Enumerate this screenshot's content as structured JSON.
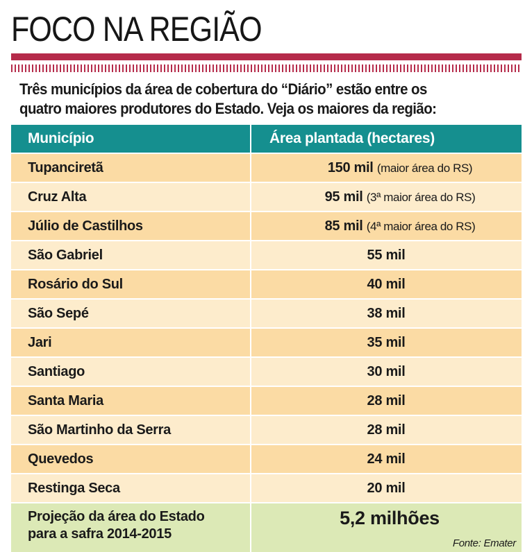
{
  "title": "FOCO NA REGIÃO",
  "intro": {
    "line1": "Três municípios da área de cobertura do “Diário” estão entre os",
    "line2": "quatro maiores produtores do Estado. Veja os maiores da região:"
  },
  "source": "Fonte: Emater",
  "colors": {
    "rule": "#b52b4a",
    "header": "#158f8f",
    "row_odd": "#fbdba4",
    "row_even": "#fdeccc",
    "total_row": "#dce9b6"
  },
  "chart_data": {
    "type": "table",
    "columns": [
      "Município",
      "Área plantada (hectares)"
    ],
    "rows": [
      {
        "municipio": "Tupanciretã",
        "area": "150 mil",
        "note": "(maior área do RS)"
      },
      {
        "municipio": "Cruz Alta",
        "area": "95 mil",
        "note": "(3ª maior área do RS)"
      },
      {
        "municipio": "Júlio de Castilhos",
        "area": "85 mil",
        "note": "(4ª maior área do RS)"
      },
      {
        "municipio": "São Gabriel",
        "area": "55 mil"
      },
      {
        "municipio": "Rosário do Sul",
        "area": "40 mil"
      },
      {
        "municipio": "São Sepé",
        "area": "38 mil"
      },
      {
        "municipio": "Jari",
        "area": "35 mil"
      },
      {
        "municipio": "Santiago",
        "area": "30 mil"
      },
      {
        "municipio": "Santa Maria",
        "area": "28 mil"
      },
      {
        "municipio": "São Martinho da Serra",
        "area": "28 mil"
      },
      {
        "municipio": "Quevedos",
        "area": "24 mil"
      },
      {
        "municipio": "Restinga Seca",
        "area": "20 mil"
      }
    ],
    "total": {
      "label_line1": "Projeção da área do Estado",
      "label_line2": "para a safra 2014-2015",
      "value": "5,2 milhões"
    }
  }
}
